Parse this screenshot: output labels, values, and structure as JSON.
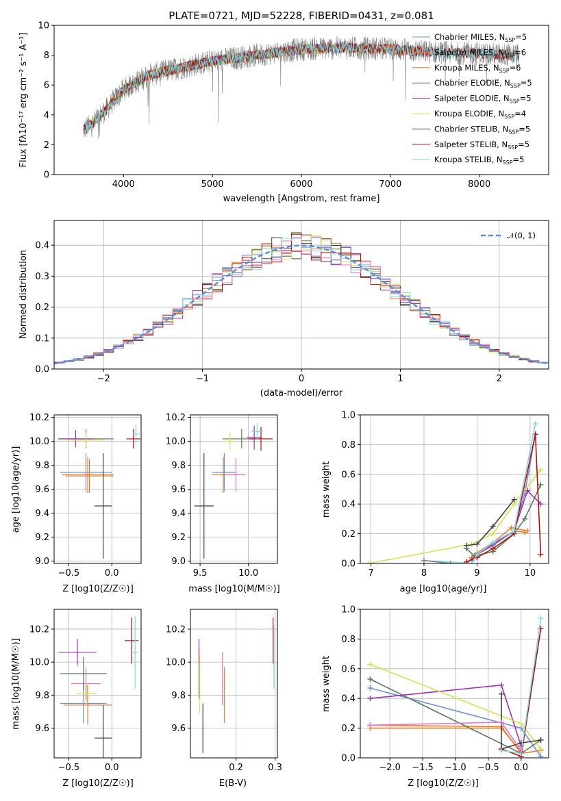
{
  "chart_data": [
    {
      "type": "line",
      "title": "PLATE=0721, MJD=52228, FIBERID=0431, z=0.081",
      "xlabel": "wavelength [Angstrom, rest frame]",
      "ylabel": "Flux [fλ10⁻¹⁷ erg cm⁻² s⁻¹ A⁻¹]",
      "xlim": [
        3220,
        8780
      ],
      "ylim": [
        0,
        10
      ],
      "xticks": [
        4000,
        5000,
        6000,
        7000,
        8000
      ],
      "yticks": [
        0,
        2,
        4,
        6,
        8,
        10
      ],
      "grid": false,
      "legend_position": "top-right",
      "observed": {
        "color": "#808080",
        "range": [
          3550,
          8450
        ]
      },
      "continuum": {
        "x": [
          3550,
          3650,
          3800,
          4000,
          4300,
          4600,
          5000,
          5500,
          6000,
          6500,
          7000,
          7500,
          8000,
          8450
        ],
        "y": [
          3.0,
          3.4,
          4.3,
          5.7,
          6.7,
          7.1,
          7.6,
          8.0,
          8.4,
          8.5,
          8.4,
          8.2,
          8.1,
          8.0
        ]
      },
      "series": [
        {
          "name": "Chabrier MILES, N",
          "sub": "SSP",
          "suffix": "=5",
          "color": "#6c8fd8",
          "xmax": 7420
        },
        {
          "name": "Salpeter MILES, N",
          "sub": "SSP",
          "suffix": "=6",
          "color": "#ee7d3a",
          "xmax": 7420
        },
        {
          "name": "Kroupa MILES, N",
          "sub": "SSP",
          "suffix": "=6",
          "color": "#e67e22",
          "xmax": 7420
        },
        {
          "name": "Chabrier ELODIE, N",
          "sub": "SSP",
          "suffix": "=5",
          "color": "#5a7a5a",
          "xmax": 6800
        },
        {
          "name": "Salpeter ELODIE, N",
          "sub": "SSP",
          "suffix": "=5",
          "color": "#9b30b0",
          "xmax": 6800
        },
        {
          "name": "Kroupa ELODIE, N",
          "sub": "SSP",
          "suffix": "=4",
          "color": "#d4e157",
          "xmax": 6800
        },
        {
          "name": "Chabrier STELIB, N",
          "sub": "SSP",
          "suffix": "=5",
          "color": "#404040",
          "xmax": 8450
        },
        {
          "name": "Salpeter STELIB, N",
          "sub": "SSP",
          "suffix": "=5",
          "color": "#b01010",
          "xmax": 8450
        },
        {
          "name": "Kroupa STELIB, N",
          "sub": "SSP",
          "suffix": "=5",
          "color": "#80d8e0",
          "xmax": 8450
        }
      ]
    },
    {
      "type": "line",
      "xlabel": "(data-model)/error",
      "ylabel": "Normed distribution",
      "xlim": [
        -2.5,
        2.5
      ],
      "ylim": [
        0,
        0.48
      ],
      "xticks": [
        -2,
        -1,
        0,
        1,
        2
      ],
      "yticks": [
        0.0,
        0.1,
        0.2,
        0.3,
        0.4
      ],
      "grid": true,
      "legend_position": "top-right",
      "legend": "𝒩(0, 1)",
      "bin_width": 0.1,
      "histogram_colors": [
        "#6c8fd8",
        "#ee7d3a",
        "#5a7a5a",
        "#9b30b0",
        "#d4e157",
        "#404040",
        "#b01010",
        "#80d8e0",
        "#e377c2"
      ],
      "gaussian_color": "#5b8ed6"
    },
    {
      "type": "scatter",
      "xlabel": "Z [log10(Z/Z☉)]",
      "ylabel": "age  [log10(age/yr)]",
      "xlim": [
        -0.67,
        0.34
      ],
      "ylim": [
        8.98,
        10.22
      ],
      "xticks": [
        -0.5,
        0.0
      ],
      "yticks": [
        9.0,
        9.2,
        9.4,
        9.6,
        9.8,
        10.0,
        10.2
      ],
      "grid": true,
      "points": [
        {
          "x": -0.3,
          "y": 9.74,
          "xerr": 0.3,
          "yerr": 0.16,
          "color": "#6c8fd8"
        },
        {
          "x": -0.28,
          "y": 9.72,
          "xerr": 0.3,
          "yerr": 0.15,
          "color": "#ee7d3a"
        },
        {
          "x": -0.26,
          "y": 9.71,
          "xerr": 0.28,
          "yerr": 0.14,
          "color": "#e67e22"
        },
        {
          "x": -0.3,
          "y": 10.02,
          "xerr": 0.32,
          "yerr": 0.08,
          "color": "#5a7a5a"
        },
        {
          "x": -0.42,
          "y": 10.02,
          "xerr": 0.2,
          "yerr": 0.07,
          "color": "#9b30b0"
        },
        {
          "x": -0.3,
          "y": 10.01,
          "xerr": 0.22,
          "yerr": 0.06,
          "color": "#d4e157"
        },
        {
          "x": -0.1,
          "y": 9.46,
          "xerr": 0.1,
          "yerr": 0.44,
          "color": "#404040"
        },
        {
          "x": 0.25,
          "y": 10.02,
          "xerr": 0.08,
          "yerr": 0.08,
          "color": "#b01010"
        },
        {
          "x": 0.28,
          "y": 10.06,
          "xerr": 0.04,
          "yerr": 0.08,
          "color": "#80d8e0"
        }
      ]
    },
    {
      "type": "scatter",
      "xlabel": "mass [log10(M/M☉)]",
      "ylabel": "",
      "xlim": [
        9.4,
        10.3
      ],
      "ylim": [
        8.98,
        10.22
      ],
      "xticks": [
        9.5,
        10.0
      ],
      "yticks": [
        9.0,
        9.2,
        9.4,
        9.6,
        9.8,
        10.0,
        10.2
      ],
      "grid": true,
      "points": [
        {
          "x": 9.75,
          "y": 9.74,
          "xerr": 0.12,
          "yerr": 0.16,
          "color": "#6c8fd8"
        },
        {
          "x": 9.74,
          "y": 9.72,
          "xerr": 0.12,
          "yerr": 0.15,
          "color": "#ee7d3a"
        },
        {
          "x": 9.87,
          "y": 9.72,
          "xerr": 0.1,
          "yerr": 0.14,
          "color": "#e377c2"
        },
        {
          "x": 9.93,
          "y": 10.02,
          "xerr": 0.2,
          "yerr": 0.08,
          "color": "#5a7a5a"
        },
        {
          "x": 10.06,
          "y": 10.03,
          "xerr": 0.08,
          "yerr": 0.1,
          "color": "#9b30b0"
        },
        {
          "x": 9.81,
          "y": 10.0,
          "xerr": 0.06,
          "yerr": 0.07,
          "color": "#d4e157"
        },
        {
          "x": 9.54,
          "y": 9.46,
          "xerr": 0.1,
          "yerr": 0.44,
          "color": "#404040"
        },
        {
          "x": 10.13,
          "y": 10.02,
          "xerr": 0.12,
          "yerr": 0.1,
          "color": "#b01010"
        },
        {
          "x": 10.09,
          "y": 10.08,
          "xerr": 0.06,
          "yerr": 0.07,
          "color": "#80d8e0"
        }
      ]
    },
    {
      "type": "line",
      "xlabel": "age  [log10(age/yr)]",
      "ylabel": "mass weight",
      "xlim": [
        6.8,
        10.35
      ],
      "ylim": [
        0,
        1
      ],
      "xticks": [
        7,
        8,
        9,
        10
      ],
      "yticks": [
        0.0,
        0.2,
        0.4,
        0.6,
        0.8,
        1.0
      ],
      "grid": true,
      "series": [
        {
          "color": "#6c8fd8",
          "x": [
            8.9,
            9.0,
            9.3,
            9.7,
            9.9,
            10.1
          ],
          "y": [
            0.03,
            0.06,
            0.12,
            0.22,
            0.47,
            0.87
          ]
        },
        {
          "color": "#ee7d3a",
          "x": [
            8.9,
            9.0,
            9.3,
            9.65,
            9.95
          ],
          "y": [
            0.04,
            0.07,
            0.14,
            0.24,
            0.22
          ]
        },
        {
          "color": "#e67e22",
          "x": [
            8.9,
            9.0,
            9.3,
            9.7,
            9.9
          ],
          "y": [
            0.03,
            0.06,
            0.13,
            0.22,
            0.21
          ]
        },
        {
          "color": "#5a7a5a",
          "x": [
            8.8,
            8.95,
            9.3,
            9.7,
            9.9,
            10.2
          ],
          "y": [
            0.1,
            0.05,
            0.08,
            0.2,
            0.3,
            0.53
          ]
        },
        {
          "color": "#9b30b0",
          "x": [
            8.9,
            9.0,
            9.3,
            9.7,
            9.95,
            10.2
          ],
          "y": [
            0.02,
            0.06,
            0.13,
            0.22,
            0.49,
            0.4
          ]
        },
        {
          "color": "#d4e157",
          "x": [
            6.95,
            8.9,
            9.3,
            9.7,
            10.2
          ],
          "y": [
            0.0,
            0.13,
            0.2,
            0.4,
            0.63
          ]
        },
        {
          "color": "#404040",
          "x": [
            8.8,
            9.0,
            9.3,
            9.7
          ],
          "y": [
            0.12,
            0.13,
            0.25,
            0.43
          ]
        },
        {
          "color": "#b01010",
          "x": [
            8.8,
            9.0,
            9.3,
            9.7,
            10.1,
            10.2
          ],
          "y": [
            0.01,
            0.04,
            0.1,
            0.2,
            0.87,
            0.06
          ]
        },
        {
          "color": "#80d8e0",
          "x": [
            8.0,
            8.9,
            9.0,
            9.3,
            9.7,
            10.1
          ],
          "y": [
            0.02,
            0.0,
            0.06,
            0.14,
            0.22,
            0.94
          ]
        },
        {
          "color": "#808080",
          "x": [
            8.0,
            8.5
          ],
          "y": [
            0.02,
            0.0
          ]
        }
      ]
    },
    {
      "type": "scatter",
      "xlabel": "Z [log10(Z/Z☉)]",
      "ylabel": "mass [log10(M/M☉)]",
      "xlim": [
        -0.67,
        0.34
      ],
      "ylim": [
        9.42,
        10.32
      ],
      "xticks": [
        -0.5,
        0.0
      ],
      "yticks": [
        9.6,
        9.8,
        10.0,
        10.2
      ],
      "grid": true,
      "points": [
        {
          "x": -0.33,
          "y": 9.75,
          "xerr": 0.27,
          "yerr": 0.12,
          "color": "#6c8fd8"
        },
        {
          "x": -0.28,
          "y": 9.74,
          "xerr": 0.28,
          "yerr": 0.12,
          "color": "#ee7d3a"
        },
        {
          "x": -0.3,
          "y": 9.87,
          "xerr": 0.17,
          "yerr": 0.1,
          "color": "#e377c2"
        },
        {
          "x": -0.33,
          "y": 9.93,
          "xerr": 0.27,
          "yerr": 0.1,
          "color": "#5a7a5a"
        },
        {
          "x": -0.4,
          "y": 10.06,
          "xerr": 0.22,
          "yerr": 0.08,
          "color": "#9b30b0"
        },
        {
          "x": -0.29,
          "y": 9.81,
          "xerr": 0.12,
          "yerr": 0.06,
          "color": "#d4e157"
        },
        {
          "x": -0.1,
          "y": 9.54,
          "xerr": 0.1,
          "yerr": 0.2,
          "color": "#404040"
        },
        {
          "x": 0.23,
          "y": 10.13,
          "xerr": 0.08,
          "yerr": 0.14,
          "color": "#b01010"
        },
        {
          "x": 0.27,
          "y": 10.06,
          "xerr": 0.04,
          "yerr": 0.22,
          "color": "#80d8e0"
        }
      ]
    },
    {
      "type": "scatter",
      "xlabel": "E(B-V)",
      "ylabel": "",
      "xlim": [
        0.083,
        0.306
      ],
      "ylim": [
        9.42,
        10.32
      ],
      "xticks": [
        0.2,
        0.3
      ],
      "yticks": [
        9.6,
        9.8,
        10.0,
        10.2
      ],
      "grid": true,
      "points": [
        {
          "x": 0.105,
          "y": 9.93,
          "yerr": 0.15,
          "color": "#5a7a5a"
        },
        {
          "x": 0.105,
          "y": 10.06,
          "yerr": 0.08,
          "color": "#9b30b0"
        },
        {
          "x": 0.107,
          "y": 9.87,
          "yerr": 0.18,
          "color": "#d4e157"
        },
        {
          "x": 0.115,
          "y": 9.6,
          "yerr": 0.15,
          "color": "#404040"
        },
        {
          "x": 0.165,
          "y": 9.9,
          "yerr": 0.16,
          "color": "#e377c2"
        },
        {
          "x": 0.17,
          "y": 9.8,
          "yerr": 0.17,
          "color": "#ee7d3a"
        },
        {
          "x": 0.295,
          "y": 10.13,
          "yerr": 0.14,
          "color": "#b01010"
        },
        {
          "x": 0.297,
          "y": 10.03,
          "yerr": 0.19,
          "color": "#80d8e0"
        }
      ]
    },
    {
      "type": "line",
      "xlabel": "Z [log10(Z/Z☉)]",
      "ylabel": "mass weight",
      "xlim": [
        -2.45,
        0.42
      ],
      "ylim": [
        0,
        1
      ],
      "xticks": [
        -2.0,
        -1.5,
        -1.0,
        -0.5,
        0.0
      ],
      "yticks": [
        0.0,
        0.2,
        0.4,
        0.6,
        0.8,
        1.0
      ],
      "grid": true,
      "series": [
        {
          "color": "#6c8fd8",
          "x": [
            -2.3,
            0.0,
            0.3
          ],
          "y": [
            0.47,
            0.2,
            0.01
          ]
        },
        {
          "color": "#ee7d3a",
          "x": [
            -2.3,
            -0.3,
            0.0,
            0.3
          ],
          "y": [
            0.22,
            0.21,
            0.03,
            0.05
          ]
        },
        {
          "color": "#e67e22",
          "x": [
            -2.3,
            -0.3,
            0.0
          ],
          "y": [
            0.2,
            0.2,
            0.04
          ]
        },
        {
          "color": "#5a7a5a",
          "x": [
            -2.3,
            0.0,
            0.3
          ],
          "y": [
            0.53,
            0.03,
            0.12
          ]
        },
        {
          "color": "#9b30b0",
          "x": [
            -2.3,
            -0.3,
            0.0
          ],
          "y": [
            0.4,
            0.49,
            0.08
          ]
        },
        {
          "color": "#d4e157",
          "x": [
            -2.3,
            0.0,
            0.3
          ],
          "y": [
            0.63,
            0.23,
            0.06
          ]
        },
        {
          "color": "#404040",
          "x": [
            -0.3,
            -0.3,
            0.0,
            0.3
          ],
          "y": [
            0.43,
            0.06,
            0.1,
            0.12
          ]
        },
        {
          "color": "#b01010",
          "x": [
            -0.3,
            0.0,
            0.3
          ],
          "y": [
            0.06,
            0.01,
            0.87
          ]
        },
        {
          "color": "#80d8e0",
          "x": [
            -0.3,
            0.0,
            0.3
          ],
          "y": [
            0.05,
            0.03,
            0.94
          ]
        },
        {
          "color": "#e377c2",
          "x": [
            -2.3,
            -0.3,
            0.0
          ],
          "y": [
            0.22,
            0.24,
            0.05
          ]
        }
      ]
    }
  ]
}
